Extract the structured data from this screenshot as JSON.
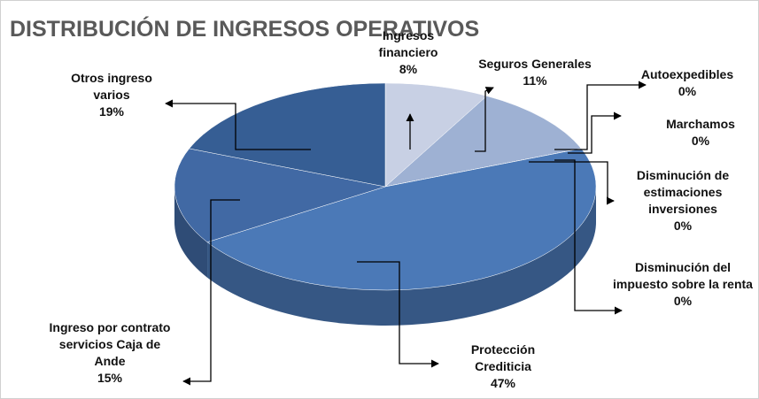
{
  "chart_data": {
    "type": "pie",
    "title": "DISTRIBUCIÓN DE INGRESOS OPERATIVOS",
    "categories": [
      "Ingresos financiero",
      "Seguros Generales",
      "Autoexpedibles",
      "Marchamos",
      "Disminución de estimaciones inversiones",
      "Disminución del impuesto sobre la renta",
      "Protección Crediticia",
      "Ingreso por contrato servicios Caja de Ande",
      "Otros ingreso varios"
    ],
    "values": [
      8,
      11,
      0,
      0,
      0,
      0,
      47,
      15,
      19
    ],
    "value_labels": [
      "8%",
      "11%",
      "0%",
      "0%",
      "0%",
      "0%",
      "47%",
      "15%",
      "19%"
    ],
    "colors": [
      "#c8d0e4",
      "#9eb1d3",
      "#8aa6d0",
      "#7d9bcb",
      "#6f90c5",
      "#6487c1",
      "#4b79b7",
      "#4169a4",
      "#365e94"
    ]
  }
}
